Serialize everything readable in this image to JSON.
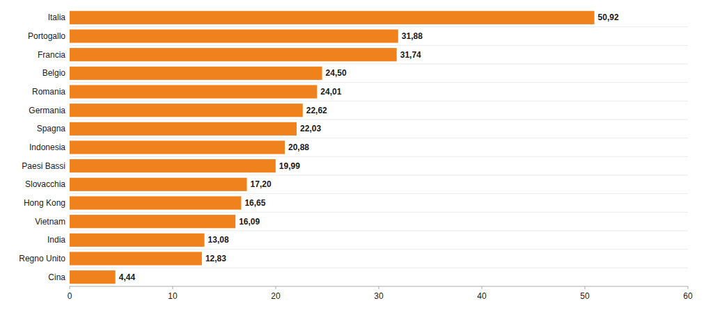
{
  "chart_data": {
    "type": "bar",
    "orientation": "horizontal",
    "categories": [
      "Italia",
      "Portogallo",
      "Francia",
      "Belgio",
      "Romania",
      "Germania",
      "Spagna",
      "Indonesia",
      "Paesi Bassi",
      "Slovacchia",
      "Hong Kong",
      "Vietnam",
      "India",
      "Regno Unito",
      "Cina"
    ],
    "values": [
      50.92,
      31.88,
      31.74,
      24.5,
      24.01,
      22.62,
      22.03,
      20.88,
      19.99,
      17.2,
      16.65,
      16.09,
      13.08,
      12.83,
      4.44
    ],
    "value_labels": [
      "50,92",
      "31,88",
      "31,74",
      "24,50",
      "24,01",
      "22,62",
      "22,03",
      "20,88",
      "19,99",
      "17,20",
      "16,65",
      "16,09",
      "13,08",
      "12,83",
      "4,44"
    ],
    "data_labels": true,
    "color": "#F0821E",
    "xlim": [
      0,
      60
    ],
    "xticks": [
      0,
      10,
      20,
      30,
      40,
      50,
      60
    ],
    "grid": false
  }
}
